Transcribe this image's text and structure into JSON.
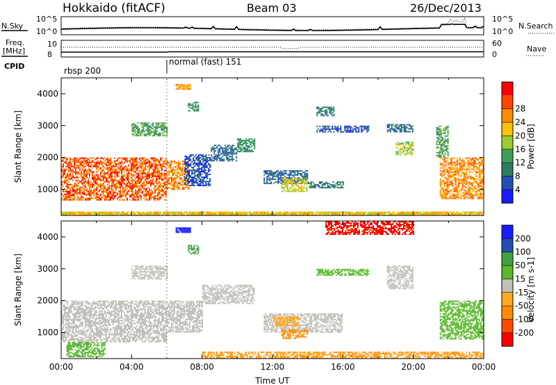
{
  "header": {
    "station": "Hokkaido (fitACF)",
    "beam": "Beam 03",
    "date": "26/Dec/2013"
  },
  "summary": {
    "nsky_label": "N.Sky",
    "nsky_ticks": [
      "10^5",
      "10^0"
    ],
    "nsearch_label": "N.Search",
    "freq_label_1": "Freq.",
    "freq_label_2": "[MHz]",
    "freq_ticks": [
      "10",
      "8"
    ],
    "nave_label": "Nave",
    "nave_ticks": [
      "60",
      "0"
    ],
    "cpid_label": "CPID",
    "modes": [
      {
        "label": "rbsp 200",
        "start_hour": 0
      },
      {
        "label": "normal (fast) 151",
        "start_hour": 6
      }
    ]
  },
  "colors": {
    "power": [
      "#1a1aff",
      "#214fb3",
      "#2d7d63",
      "#3e9e5b",
      "#9acd32",
      "#ffc107",
      "#ff8c00",
      "#ff4500",
      "#ff0000"
    ],
    "velocity": [
      "#ff0000",
      "#ff4a00",
      "#ff8c00",
      "#ffaa22",
      "#c0c0b8",
      "#5ab82a",
      "#41a040",
      "#214fb3",
      "#1a1aff"
    ]
  },
  "chart_data": [
    {
      "type": "heatmap",
      "panel": "power",
      "ylabel": "Slant Range [km]",
      "xlim": [
        0,
        24
      ],
      "ylim": [
        180,
        4500
      ],
      "yticks": [
        1000,
        2000,
        3000,
        4000
      ],
      "colorbar_label": "Power [dB]",
      "colorbar_ticks": [
        4,
        8,
        12,
        16,
        20,
        24,
        28
      ],
      "colorbar_range": [
        0,
        30
      ],
      "regions": [
        {
          "t0": 0.0,
          "t1": 6.0,
          "r0": 650,
          "r1": 2000,
          "level": 28
        },
        {
          "t0": 4.0,
          "t1": 6.0,
          "r0": 2700,
          "r1": 3100,
          "level": 14
        },
        {
          "t0": 6.0,
          "t1": 7.2,
          "r0": 1000,
          "r1": 1900,
          "level": 26
        },
        {
          "t0": 7.0,
          "t1": 8.5,
          "r0": 1100,
          "r1": 2100,
          "level": 6
        },
        {
          "t0": 8.5,
          "t1": 10.0,
          "r0": 1900,
          "r1": 2400,
          "level": 8
        },
        {
          "t0": 10.0,
          "t1": 11.0,
          "r0": 2200,
          "r1": 2600,
          "level": 12
        },
        {
          "t0": 7.2,
          "t1": 7.8,
          "r0": 3450,
          "r1": 3750,
          "level": 12
        },
        {
          "t0": 6.5,
          "t1": 7.3,
          "r0": 4150,
          "r1": 4300,
          "level": 26
        },
        {
          "t0": 11.5,
          "t1": 14.0,
          "r0": 1200,
          "r1": 1600,
          "level": 8
        },
        {
          "t0": 12.5,
          "t1": 14.0,
          "r0": 950,
          "r1": 1350,
          "level": 20
        },
        {
          "t0": 14.0,
          "t1": 16.0,
          "r0": 1050,
          "r1": 1250,
          "level": 10
        },
        {
          "t0": 14.5,
          "t1": 17.5,
          "r0": 2800,
          "r1": 3000,
          "level": 6
        },
        {
          "t0": 18.5,
          "t1": 20.0,
          "r0": 2800,
          "r1": 3050,
          "level": 8
        },
        {
          "t0": 19.0,
          "t1": 20.0,
          "r0": 2100,
          "r1": 2500,
          "level": 18
        },
        {
          "t0": 14.5,
          "t1": 15.5,
          "r0": 3300,
          "r1": 3600,
          "level": 10
        },
        {
          "t0": 21.5,
          "t1": 24.0,
          "r0": 700,
          "r1": 2000,
          "level": 26
        },
        {
          "t0": 21.3,
          "t1": 22.0,
          "r0": 2000,
          "r1": 3000,
          "level": 14
        },
        {
          "t0": 0.0,
          "t1": 24.0,
          "r0": 190,
          "r1": 300,
          "level": 22
        }
      ]
    },
    {
      "type": "heatmap",
      "panel": "velocity",
      "ylabel": "Slant Range [km]",
      "xlabel": "Time UT",
      "xlim": [
        0,
        24
      ],
      "ylim": [
        180,
        4500
      ],
      "yticks": [
        1000,
        2000,
        3000,
        4000
      ],
      "xticks": [
        "00:00",
        "04:00",
        "08:00",
        "12:00",
        "16:00",
        "20:00",
        "00:00"
      ],
      "colorbar_label": "Velocity [m s-1]",
      "colorbar_ticks": [
        -200,
        -100,
        -50,
        -15,
        15,
        50,
        100,
        200
      ],
      "colorbar_range": [
        -250,
        250
      ],
      "regions": [
        {
          "t0": 0.0,
          "t1": 6.0,
          "r0": 700,
          "r1": 2000,
          "level": 0
        },
        {
          "t0": 4.0,
          "t1": 6.0,
          "r0": 2700,
          "r1": 3100,
          "level": 0
        },
        {
          "t0": 6.0,
          "t1": 8.0,
          "r0": 1000,
          "r1": 2000,
          "level": 0
        },
        {
          "t0": 8.0,
          "t1": 11.0,
          "r0": 1900,
          "r1": 2500,
          "level": 0
        },
        {
          "t0": 0.3,
          "t1": 2.5,
          "r0": 250,
          "r1": 700,
          "level": 40
        },
        {
          "t0": 11.5,
          "t1": 16.0,
          "r0": 1000,
          "r1": 1600,
          "level": 0
        },
        {
          "t0": 12.5,
          "t1": 14.0,
          "r0": 800,
          "r1": 1100,
          "level": -70
        },
        {
          "t0": 12.0,
          "t1": 13.5,
          "r0": 1200,
          "r1": 1500,
          "level": -30
        },
        {
          "t0": 18.5,
          "t1": 20.0,
          "r0": 2400,
          "r1": 3100,
          "level": 0
        },
        {
          "t0": 14.5,
          "t1": 17.5,
          "r0": 2800,
          "r1": 3000,
          "level": 30
        },
        {
          "t0": 21.5,
          "t1": 24.0,
          "r0": 800,
          "r1": 2000,
          "level": 30
        },
        {
          "t0": 6.5,
          "t1": 7.3,
          "r0": 4150,
          "r1": 4300,
          "level": 220
        },
        {
          "t0": 7.2,
          "t1": 7.8,
          "r0": 3450,
          "r1": 3750,
          "level": 80
        },
        {
          "t0": 15.0,
          "t1": 20.0,
          "r0": 4100,
          "r1": 4500,
          "level": -210
        },
        {
          "t0": 8.0,
          "t1": 24.0,
          "r0": 190,
          "r1": 400,
          "level": -50
        }
      ]
    }
  ]
}
